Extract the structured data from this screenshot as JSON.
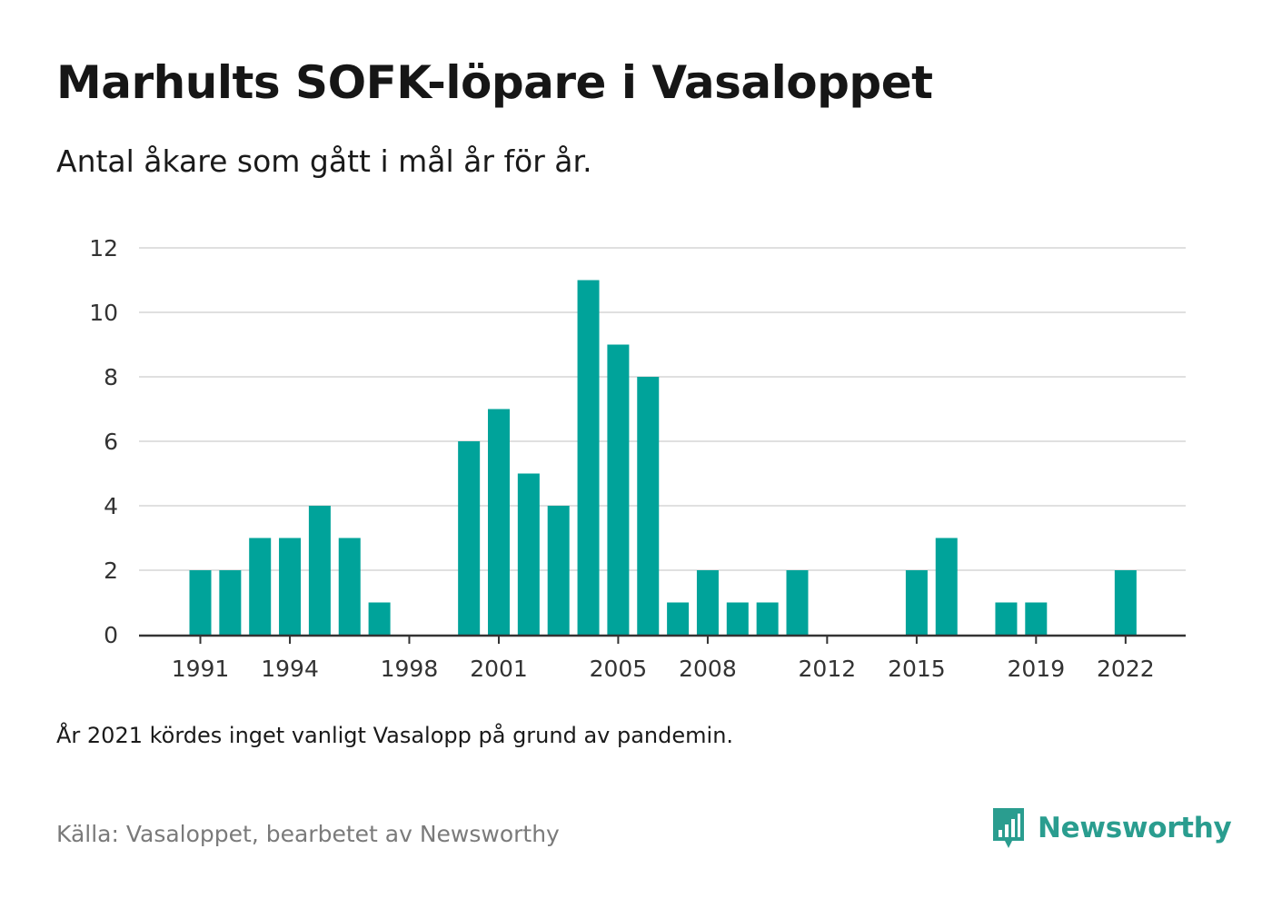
{
  "header": {
    "title": "Marhults SOFK-löpare i Vasaloppet",
    "subtitle": "Antal åkare som gått i mål år för år."
  },
  "footer": {
    "note": "År 2021 kördes inget vanligt Vasalopp på grund av pandemin.",
    "source": "Källa: Vasaloppet, bearbetet av Newsworthy",
    "brand": "Newsworthy"
  },
  "colors": {
    "bar": "#00a39a",
    "gridline": "#e0e0e0",
    "axis": "#333333",
    "brand": "#2a9d8f"
  },
  "chart_data": {
    "type": "bar",
    "title": "Marhults SOFK-löpare i Vasaloppet",
    "subtitle": "Antal åkare som gått i mål år för år.",
    "xlabel": "",
    "ylabel": "",
    "ylim": [
      0,
      12
    ],
    "yticks": [
      0,
      2,
      4,
      6,
      8,
      10,
      12
    ],
    "xticks": [
      1991,
      1994,
      1998,
      2001,
      2005,
      2008,
      2012,
      2015,
      2019,
      2022
    ],
    "xrange": [
      1991,
      2022
    ],
    "grid": true,
    "legend": "none",
    "categories": [
      1991,
      1992,
      1993,
      1994,
      1995,
      1996,
      1997,
      1998,
      1999,
      2000,
      2001,
      2002,
      2003,
      2004,
      2005,
      2006,
      2007,
      2008,
      2009,
      2010,
      2011,
      2012,
      2013,
      2014,
      2015,
      2016,
      2017,
      2018,
      2019,
      2020,
      2021,
      2022
    ],
    "values": [
      2,
      2,
      3,
      3,
      4,
      3,
      1,
      0,
      0,
      6,
      7,
      5,
      4,
      11,
      9,
      8,
      1,
      2,
      1,
      1,
      2,
      0,
      0,
      0,
      2,
      3,
      0,
      1,
      1,
      0,
      0,
      2
    ]
  }
}
